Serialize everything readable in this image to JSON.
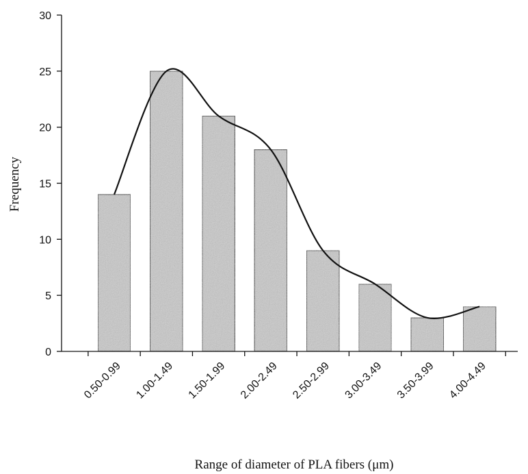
{
  "chart_data": {
    "type": "bar",
    "title": "",
    "xlabel": "Range of diameter of  PLA fibers (μm)",
    "ylabel": "Frequency",
    "categories": [
      "0.50-0.99",
      "1.00-1.49",
      "1.50-1.99",
      "2.00-2.49",
      "2.50-2.99",
      "3.00-3.49",
      "3.50-3.99",
      "4.00-4.49"
    ],
    "values": [
      14,
      25,
      21,
      18,
      9,
      6,
      3,
      4
    ],
    "ylim": [
      0,
      30
    ],
    "yticks": [
      0,
      5,
      10,
      15,
      20,
      25,
      30
    ],
    "ytick_labels": [
      "0",
      "5",
      "10",
      "15",
      "20",
      "25",
      "30"
    ],
    "grid": false,
    "legend": "none",
    "overlay": "smoothed distribution curve through bar tops",
    "colors": {
      "bar_fill": "#c9c9c9",
      "bar_edge": "#222222",
      "curve": "#111111"
    }
  }
}
